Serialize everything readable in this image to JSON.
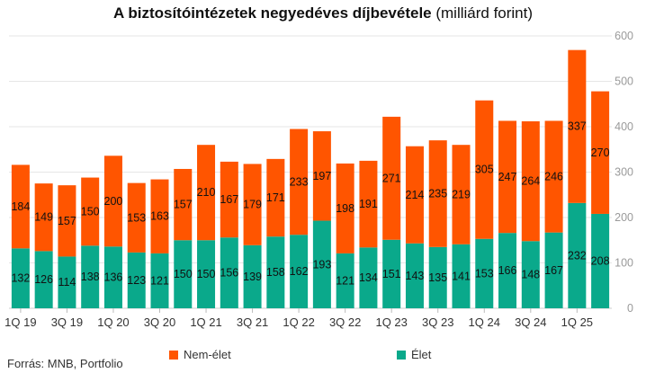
{
  "title": {
    "bold": "A biztosítóintézetek negyedéves díjbevétele",
    "normal": " (milliárd forint)"
  },
  "source": "Forrás: MNB, Portfolio",
  "colors": {
    "nonlife": "#ff5500",
    "life": "#0aa98b",
    "grid": "#e6e6e6"
  },
  "legend": {
    "nonlife": "Nem-élet",
    "life": "Élet"
  },
  "chart_data": {
    "type": "bar",
    "stacked": true,
    "categories": [
      "1Q 19",
      "2Q 19",
      "3Q 19",
      "4Q 19",
      "1Q 20",
      "2Q 20",
      "3Q 20",
      "4Q 20",
      "1Q 21",
      "2Q 21",
      "3Q 21",
      "4Q 21",
      "1Q 22",
      "2Q 22",
      "3Q 22",
      "4Q 22",
      "1Q 23",
      "2Q 23",
      "3Q 23",
      "4Q 23",
      "1Q 24",
      "2Q 24",
      "3Q 24",
      "4Q 24",
      "1Q 25",
      "2Q 25"
    ],
    "x_tick_labels": [
      "1Q 19",
      "3Q 19",
      "1Q 20",
      "3Q 20",
      "1Q 21",
      "3Q 21",
      "1Q 22",
      "3Q 22",
      "1Q 23",
      "3Q 23",
      "1Q 24",
      "3Q 24",
      "1Q 25"
    ],
    "series": [
      {
        "name": "Élet",
        "values": [
          132,
          126,
          114,
          138,
          136,
          123,
          121,
          150,
          150,
          156,
          139,
          158,
          162,
          193,
          121,
          134,
          151,
          143,
          135,
          141,
          153,
          166,
          148,
          167,
          232,
          208
        ]
      },
      {
        "name": "Nem-élet",
        "values": [
          184,
          149,
          157,
          150,
          200,
          153,
          163,
          157,
          210,
          167,
          179,
          171,
          233,
          197,
          198,
          191,
          271,
          214,
          235,
          219,
          305,
          247,
          264,
          246,
          337,
          270
        ]
      }
    ],
    "ylim": [
      0,
      600
    ],
    "yticks": [
      "0",
      "100",
      "200",
      "300",
      "400",
      "500",
      "600"
    ],
    "y_axis_position": "right",
    "grid": true,
    "legend_position": "bottom"
  }
}
